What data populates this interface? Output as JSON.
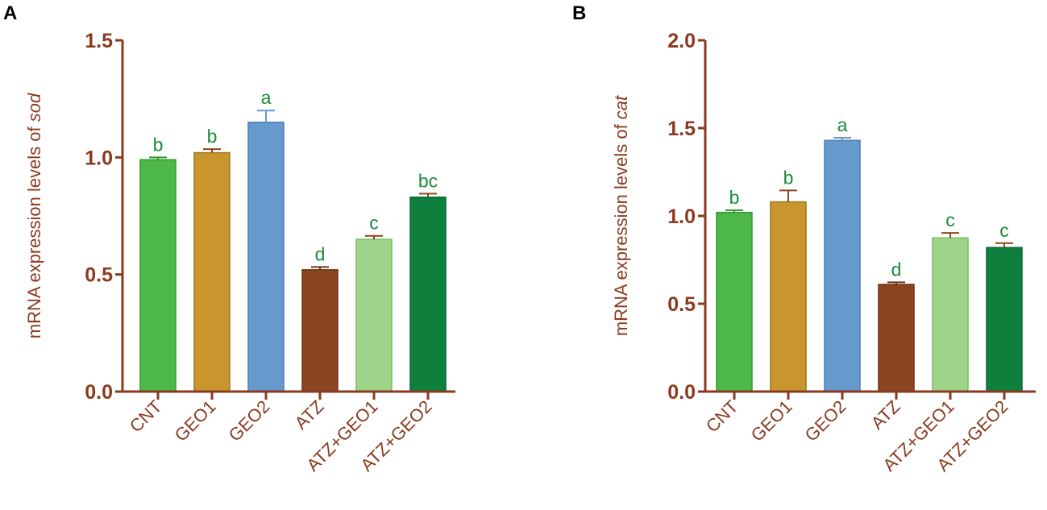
{
  "colors": {
    "axis": "#8B3A1F",
    "sig_text": "#1A8A3A",
    "bars": [
      "#4DB848",
      "#C9962E",
      "#6699CC",
      "#8B4420",
      "#9ED38A",
      "#0E7F3C"
    ],
    "bar_edges": [
      "#2F9A32",
      "#9C7420",
      "#4F7FB0",
      "#6E3214",
      "#74BF60",
      "#086A30"
    ],
    "error": [
      "#2F9A32",
      "#8B4420",
      "#6699CC",
      "#6E3214",
      "#8B4420",
      "#8B4420"
    ]
  },
  "chart_data": [
    {
      "panel": "A",
      "type": "bar",
      "ylabel_prefix": "mRNA expression levels of ",
      "ylabel_gene": "sod",
      "categories": [
        "CNT",
        "GEO1",
        "GEO2",
        "ATZ",
        "ATZ+GEO1",
        "ATZ+GEO2"
      ],
      "values": [
        0.99,
        1.02,
        1.15,
        0.52,
        0.65,
        0.83
      ],
      "errors": [
        0.01,
        0.015,
        0.05,
        0.012,
        0.015,
        0.015
      ],
      "significance": [
        "b",
        "b",
        "a",
        "d",
        "c",
        "bc"
      ],
      "ylim": [
        0,
        1.5
      ],
      "yticks": [
        "0.0",
        "0.5",
        "1.0",
        "1.5"
      ]
    },
    {
      "panel": "B",
      "type": "bar",
      "ylabel_prefix": "mRNA expression levels of ",
      "ylabel_gene": "cat",
      "categories": [
        "CNT",
        "GEO1",
        "GEO2",
        "ATZ",
        "ATZ+GEO1",
        "ATZ+GEO2"
      ],
      "values": [
        1.02,
        1.08,
        1.43,
        0.61,
        0.875,
        0.82
      ],
      "errors": [
        0.012,
        0.065,
        0.015,
        0.012,
        0.028,
        0.025
      ],
      "significance": [
        "b",
        "b",
        "a",
        "d",
        "c",
        "c"
      ],
      "ylim": [
        0,
        2.0
      ],
      "yticks": [
        "0.0",
        "0.5",
        "1.0",
        "1.5",
        "2.0"
      ]
    }
  ]
}
